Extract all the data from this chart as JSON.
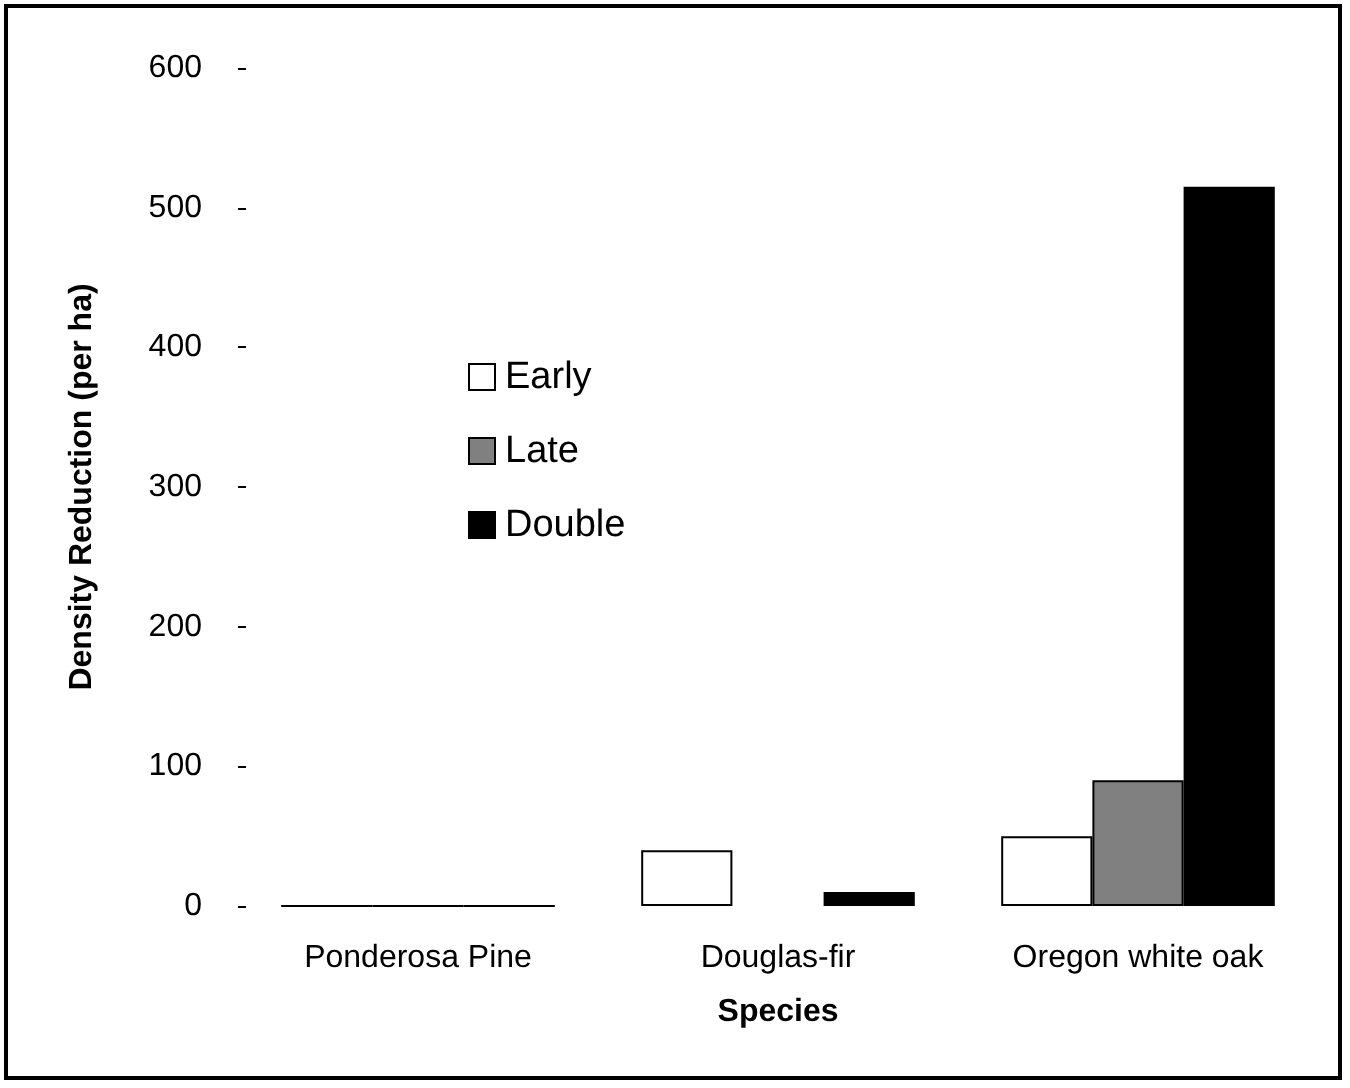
{
  "chart_data": {
    "type": "bar",
    "xlabel": "Species",
    "ylabel": "Density Reduction (per ha)",
    "categories": [
      "Ponderosa Pine",
      "Douglas-fir",
      "Oregon white oak"
    ],
    "series": [
      {
        "name": "Early",
        "color": "#ffffff",
        "values": [
          0,
          40,
          50
        ]
      },
      {
        "name": "Late",
        "color": "#808080",
        "values": [
          0,
          null,
          90
        ]
      },
      {
        "name": "Double",
        "color": "#000000",
        "values": [
          0,
          10,
          515
        ]
      }
    ],
    "ylim": [
      0,
      600
    ],
    "yticks": [
      0,
      100,
      200,
      300,
      400,
      500,
      600
    ],
    "grid": false,
    "legend": "left"
  }
}
